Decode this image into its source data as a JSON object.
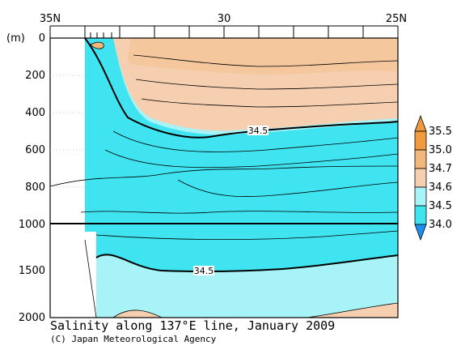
{
  "chart_data": {
    "type": "heatmap",
    "title": "Salinity along 137°E line, January 2009",
    "credit": "(C) Japan Meteorological Agency",
    "y_unit": "(m)",
    "x_ticks": [
      "35N",
      "30",
      "25N"
    ],
    "y_ticks": [
      "0",
      "200",
      "400",
      "600",
      "800",
      "1000",
      "1500",
      "2000"
    ],
    "xlim": [
      35,
      25
    ],
    "ylim": [
      2000,
      0
    ],
    "y_axis_break": 1000,
    "colorbar": {
      "levels": [
        "34.0",
        "34.5",
        "34.6",
        "34.7",
        "35.0",
        "35.5"
      ],
      "colors": [
        "#1e8ef0",
        "#3fe4f0",
        "#a8f3f7",
        "#f5cfb0",
        "#f3b87c",
        "#ef9a3e"
      ]
    },
    "contour_labels": [
      {
        "value": "34.5",
        "lat": 30.3,
        "depth": 510
      },
      {
        "value": "34.5",
        "lat": 31.7,
        "depth": 1500
      }
    ],
    "regions": [
      {
        "level": "34.7",
        "boundary": [
          [
            31.0,
            0
          ],
          [
            32.5,
            0
          ],
          [
            33.2,
            60
          ],
          [
            33.0,
            220
          ],
          [
            31.5,
            330
          ],
          [
            29.5,
            280
          ],
          [
            27.0,
            260
          ],
          [
            25.0,
            220
          ],
          [
            25.0,
            0
          ]
        ]
      },
      {
        "level": "34.6",
        "boundary": [
          [
            33.2,
            0
          ],
          [
            34.0,
            30
          ],
          [
            32.8,
            370
          ],
          [
            31.0,
            500
          ],
          [
            29.0,
            470
          ],
          [
            27.0,
            420
          ],
          [
            25.0,
            380
          ],
          [
            25.0,
            0
          ]
        ]
      },
      {
        "level": "34.5",
        "boundary": [
          [
            34.0,
            0
          ],
          [
            34.3,
            200
          ],
          [
            33.2,
            430
          ],
          [
            31.5,
            570
          ],
          [
            29.5,
            540
          ],
          [
            27.0,
            500
          ],
          [
            25.0,
            450
          ],
          [
            25.0,
            0
          ]
        ]
      },
      {
        "level": "34.5",
        "boundary": [
          [
            35.0,
            1980
          ],
          [
            33.0,
            1650
          ],
          [
            31.0,
            1500
          ],
          [
            28.5,
            1480
          ],
          [
            25.0,
            1300
          ],
          [
            25.0,
            2000
          ],
          [
            35.0,
            2000
          ]
        ]
      }
    ]
  }
}
